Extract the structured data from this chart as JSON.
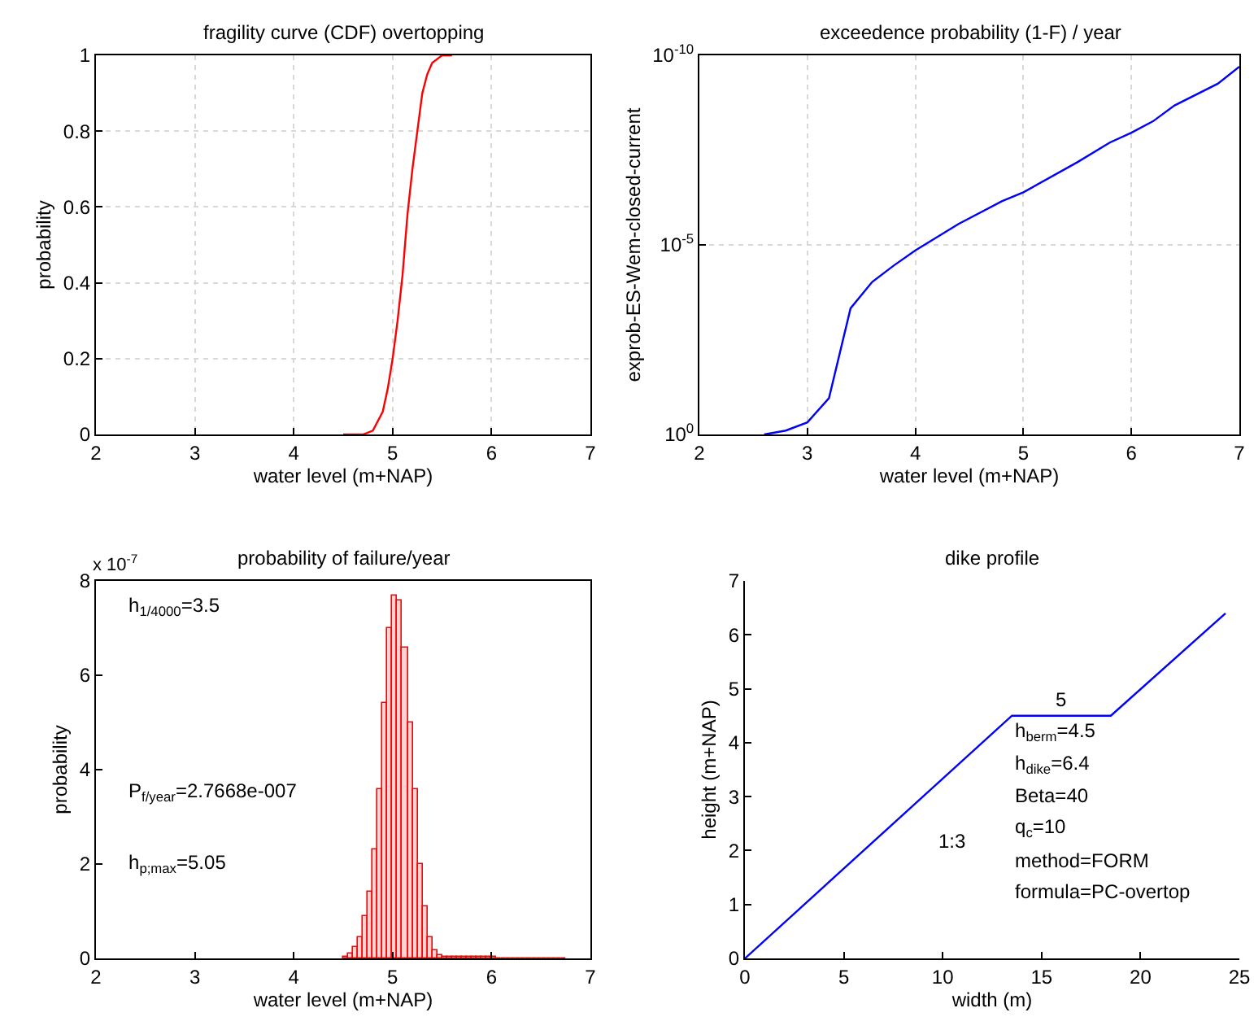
{
  "chart_data": [
    {
      "type": "line",
      "title": "fragility curve (CDF) overtopping",
      "xlabel": "water level (m+NAP)",
      "ylabel": "probability",
      "x": [
        4.5,
        4.7,
        4.8,
        4.9,
        4.95,
        5.0,
        5.05,
        5.1,
        5.15,
        5.2,
        5.25,
        5.3,
        5.35,
        5.4,
        5.45,
        5.5,
        5.6
      ],
      "series": [
        {
          "color": "#ff0000",
          "values": [
            0,
            0,
            0.01,
            0.06,
            0.12,
            0.2,
            0.3,
            0.42,
            0.58,
            0.7,
            0.8,
            0.9,
            0.95,
            0.98,
            0.99,
            1.0,
            1.0
          ]
        }
      ],
      "xlim": [
        2,
        7
      ],
      "xticks": [
        2,
        3,
        4,
        5,
        6,
        7
      ],
      "ylim": [
        0,
        1
      ],
      "yticks": [
        0,
        0.2,
        0.4,
        0.6,
        0.8,
        1
      ],
      "grid": true
    },
    {
      "type": "line",
      "title": "exceedence probability (1-F) / year",
      "xlabel": "water level (m+NAP)",
      "ylabel": "exprob-ES-Wem-closed-current",
      "x": [
        2.6,
        2.8,
        3.0,
        3.2,
        3.4,
        3.6,
        3.8,
        4.0,
        4.4,
        4.8,
        5.0,
        5.5,
        5.8,
        6.0,
        6.2,
        6.4,
        6.8,
        7.0
      ],
      "series": [
        {
          "color": "#0000ff",
          "values": [
            1,
            0.79,
            0.48,
            0.11,
            0.00047,
            9.5e-05,
            3.5e-05,
            1.4e-05,
            2.8e-06,
            7.1e-07,
            4.1e-07,
            6.6e-08,
            2e-08,
            1.1e-08,
            5.5e-09,
            2.1e-09,
            5.6e-10,
            2e-10
          ]
        }
      ],
      "xlim": [
        2,
        7
      ],
      "xticks": [
        2,
        3,
        4,
        5,
        6,
        7
      ],
      "ylim": [
        1,
        1e-10
      ],
      "log": "y",
      "yticks": [
        {
          "value": 1,
          "label": "10$^{0}$"
        },
        {
          "value": 1e-05,
          "label": "10$^{-5}$"
        },
        {
          "value": 1e-10,
          "label": "10$^{-10}$"
        }
      ],
      "grid": true
    },
    {
      "type": "histogram",
      "title": "probability of failure/year",
      "xlabel": "water level (m+NAP)",
      "ylabel": "probability",
      "color": "#ff0000",
      "bins": [
        4.5,
        4.55,
        4.6,
        4.65,
        4.7,
        4.75,
        4.8,
        4.85,
        4.9,
        4.95,
        5.0,
        5.05,
        5.1,
        5.15,
        5.2,
        5.25,
        5.3,
        5.35,
        5.4,
        5.45,
        5.5,
        5.55,
        5.6,
        5.65,
        5.7,
        5.75,
        5.8,
        5.85,
        5.9,
        5.95,
        6.0,
        6.05,
        6.1,
        6.15,
        6.2,
        6.25,
        6.3,
        6.35,
        6.4,
        6.45,
        6.5,
        6.55,
        6.6,
        6.65,
        6.7,
        6.75
      ],
      "values": [
        0.05,
        0.11,
        0.23,
        0.45,
        0.9,
        1.4,
        2.3,
        3.6,
        5.4,
        7.0,
        7.7,
        7.6,
        6.6,
        5.0,
        3.6,
        2.0,
        1.1,
        0.44,
        0.17,
        0.08,
        0.04,
        0.03,
        0.03,
        0.02,
        0.02,
        0.02,
        0.02,
        0.02,
        0.02,
        0.02,
        0.02,
        0.01,
        0.01,
        0.01,
        0.01,
        0.01,
        0.01,
        0.01,
        0.01,
        0.01,
        0.01,
        0.01,
        0.01,
        0.01,
        0.01
      ],
      "xlim": [
        2,
        7
      ],
      "xticks": [
        2,
        3,
        4,
        5,
        6,
        7
      ],
      "ylim": [
        0,
        8
      ],
      "yticks": [
        0,
        2,
        4,
        6,
        8
      ],
      "annotations": [
        "x 10$^{-7}$",
        "h$_{1/4000}$=3.5",
        "P$_{f/year}$=2.7668e-007",
        "h$_{p;max}$=5.05"
      ]
    },
    {
      "type": "line",
      "title": "dike profile",
      "xlabel": "width (m)",
      "ylabel": "height (m+NAP)",
      "x": [
        0,
        13.5,
        18.5,
        24.3
      ],
      "series": [
        {
          "color": "#0000ff",
          "values": [
            0,
            4.5,
            4.5,
            6.4
          ]
        }
      ],
      "xlim": [
        0,
        25
      ],
      "xticks": [
        0,
        5,
        10,
        15,
        20,
        25
      ],
      "ylim": [
        0,
        7
      ],
      "yticks": [
        0,
        1,
        2,
        3,
        4,
        5,
        6,
        7
      ],
      "annotations": [
        {
          "text": "5",
          "x": 16,
          "y": 4.5
        },
        "1:3",
        "h$_{berm}$=4.5",
        "h$_{dike}$=6.4",
        "Beta=40",
        "q$_{c}$=10",
        "method=FORM",
        "formula=PC-overtop"
      ]
    }
  ]
}
